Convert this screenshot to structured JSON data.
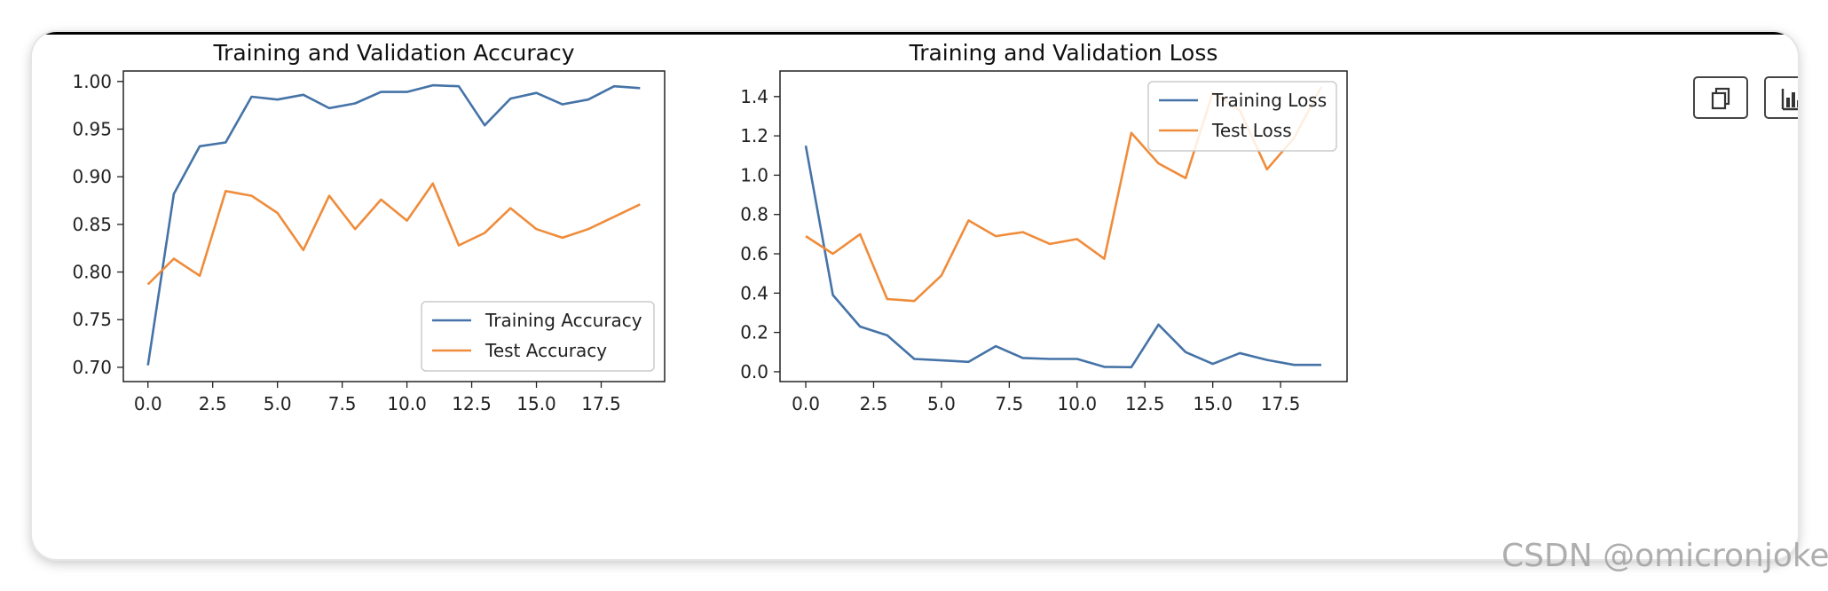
{
  "chart_data": [
    {
      "type": "line",
      "title": "Training and Validation Accuracy",
      "xlabel": "",
      "ylabel": "",
      "x": [
        0,
        1,
        2,
        3,
        4,
        5,
        6,
        7,
        8,
        9,
        10,
        11,
        12,
        13,
        14,
        15,
        16,
        17,
        18,
        19
      ],
      "xlim": [
        -0.95,
        19.95
      ],
      "ylim": [
        0.685,
        1.011
      ],
      "xticks": [
        0.0,
        2.5,
        5.0,
        7.5,
        10.0,
        12.5,
        15.0,
        17.5
      ],
      "xtick_labels": [
        "0.0",
        "2.5",
        "5.0",
        "7.5",
        "10.0",
        "12.5",
        "15.0",
        "17.5"
      ],
      "yticks": [
        0.7,
        0.75,
        0.8,
        0.85,
        0.9,
        0.95,
        1.0
      ],
      "ytick_labels": [
        "0.70",
        "0.75",
        "0.80",
        "0.85",
        "0.90",
        "0.95",
        "1.00"
      ],
      "legend_position": "lower-right",
      "series": [
        {
          "name": "Training Accuracy",
          "color": "#4573a7",
          "values": [
            0.702,
            0.882,
            0.932,
            0.936,
            0.984,
            0.981,
            0.986,
            0.972,
            0.977,
            0.989,
            0.989,
            0.996,
            0.995,
            0.954,
            0.982,
            0.988,
            0.976,
            0.981,
            0.995,
            0.993
          ]
        },
        {
          "name": "Test Accuracy",
          "color": "#ef8c3b",
          "values": [
            0.787,
            0.814,
            0.796,
            0.885,
            0.88,
            0.862,
            0.823,
            0.88,
            0.845,
            0.876,
            0.854,
            0.893,
            0.828,
            0.841,
            0.867,
            0.845,
            0.836,
            0.845,
            0.858,
            0.871
          ]
        }
      ]
    },
    {
      "type": "line",
      "title": "Training and Validation Loss",
      "xlabel": "",
      "ylabel": "",
      "x": [
        0,
        1,
        2,
        3,
        4,
        5,
        6,
        7,
        8,
        9,
        10,
        11,
        12,
        13,
        14,
        15,
        16,
        17,
        18,
        19
      ],
      "xlim": [
        -0.95,
        19.95
      ],
      "ylim": [
        -0.05,
        1.53
      ],
      "xticks": [
        0.0,
        2.5,
        5.0,
        7.5,
        10.0,
        12.5,
        15.0,
        17.5
      ],
      "xtick_labels": [
        "0.0",
        "2.5",
        "5.0",
        "7.5",
        "10.0",
        "12.5",
        "15.0",
        "17.5"
      ],
      "yticks": [
        0.0,
        0.2,
        0.4,
        0.6,
        0.8,
        1.0,
        1.2,
        1.4
      ],
      "ytick_labels": [
        "0.0",
        "0.2",
        "0.4",
        "0.6",
        "0.8",
        "1.0",
        "1.2",
        "1.4"
      ],
      "legend_position": "upper-right",
      "series": [
        {
          "name": "Training Loss",
          "color": "#4573a7",
          "values": [
            1.15,
            0.39,
            0.23,
            0.185,
            0.065,
            0.058,
            0.05,
            0.13,
            0.07,
            0.065,
            0.065,
            0.025,
            0.023,
            0.24,
            0.1,
            0.04,
            0.095,
            0.06,
            0.035,
            0.035
          ]
        },
        {
          "name": "Test Loss",
          "color": "#ef8c3b",
          "values": [
            0.69,
            0.6,
            0.7,
            0.37,
            0.36,
            0.49,
            0.77,
            0.69,
            0.71,
            0.65,
            0.675,
            0.575,
            1.215,
            1.06,
            0.985,
            1.42,
            1.33,
            1.03,
            1.19,
            1.45
          ]
        }
      ]
    }
  ],
  "toolbar": {
    "copy_icon": "copy-icon",
    "chart_icon": "bar-chart-icon"
  },
  "watermark": {
    "text": "CSDN @omicronjoke"
  }
}
